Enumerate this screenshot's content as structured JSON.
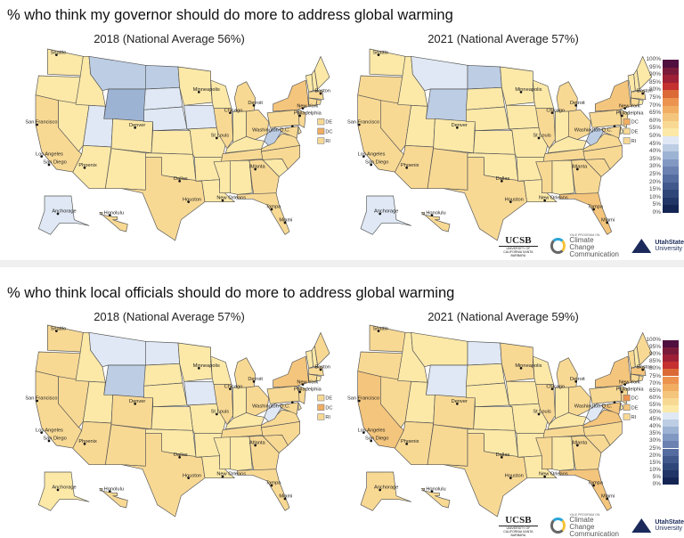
{
  "sections": [
    {
      "title": "% who think my governor should do more to address global warming",
      "maps": [
        {
          "title": "2018 (National Average 56%)",
          "values": {
            "MT": 40,
            "ND": 40,
            "WY": 35,
            "SD": 45,
            "NE": 45,
            "IA": 45,
            "UT": 45,
            "AK": 45,
            "WV": 40,
            "CA": 55,
            "TX": 55,
            "NY": 60,
            "IL": 55,
            "MI": 55,
            "OH": 55,
            "PA": 55,
            "VA": 55,
            "NC": 55,
            "TN": 55,
            "GA": 55,
            "FL": 55,
            "NJ": 55,
            "MD": 55,
            "CT": 55,
            "MA": 55,
            "RI": 55,
            "HI": 55
          },
          "small_states": [
            {
              "label": "DE",
              "value": 55
            },
            {
              "label": "DC",
              "value": 65
            },
            {
              "label": "RI",
              "value": 55
            }
          ]
        },
        {
          "title": "2021 (National Average 57%)",
          "values": {
            "MT": 45,
            "ND": 40,
            "WY": 40,
            "WV": 40,
            "AK": 45,
            "CA": 55,
            "OR": 55,
            "NV": 55,
            "AZ": 55,
            "NM": 55,
            "TX": 55,
            "IL": 55,
            "MI": 55,
            "OH": 55,
            "PA": 55,
            "NY": 60,
            "NJ": 55,
            "MD": 55,
            "VA": 55,
            "NC": 55,
            "SC": 55,
            "GA": 55,
            "TN": 55,
            "MS": 55,
            "FL": 60,
            "HI": 55,
            "CT": 55,
            "MA": 55
          },
          "small_states": [
            {
              "label": "DC",
              "value": 65
            },
            {
              "label": "DE",
              "value": 55
            },
            {
              "label": "RI",
              "value": 55
            }
          ]
        }
      ]
    },
    {
      "title": "% who think local officials should do more to address global warming",
      "maps": [
        {
          "title": "2018 (National Average 57%)",
          "values": {
            "MT": 45,
            "ND": 45,
            "WY": 40,
            "IA": 45,
            "WV": 45,
            "WA": 55,
            "OR": 55,
            "CA": 55,
            "NV": 55,
            "AZ": 55,
            "NM": 55,
            "CO": 55,
            "TX": 55,
            "IL": 55,
            "MI": 55,
            "OH": 55,
            "PA": 55,
            "NY": 60,
            "VA": 55,
            "NC": 55,
            "SC": 55,
            "GA": 55,
            "TN": 55,
            "FL": 55,
            "NJ": 55,
            "MD": 55,
            "MA": 55,
            "CT": 55,
            "ME": 55,
            "HI": 55
          },
          "small_states": [
            {
              "label": "DE",
              "value": 55
            },
            {
              "label": "DC",
              "value": 65
            },
            {
              "label": "RI",
              "value": 55
            }
          ]
        },
        {
          "title": "2021 (National Average 59%)",
          "values": {
            "ND": 45,
            "WY": 45,
            "WV": 45,
            "CA": 60,
            "FL": 60,
            "VA": 60,
            "NY": 60,
            "MD": 60,
            "MA": 60,
            "WA": 55,
            "OR": 55,
            "NV": 55,
            "AZ": 55,
            "NM": 55,
            "CO": 55,
            "TX": 55,
            "MN": 55,
            "IL": 55,
            "MI": 55,
            "OH": 55,
            "PA": 55,
            "NC": 55,
            "SC": 55,
            "GA": 55,
            "TN": 55,
            "MS": 55,
            "AK": 55,
            "HI": 55,
            "NJ": 55,
            "CT": 55,
            "ME": 55,
            "VT": 55,
            "RI": 55
          },
          "small_states": [
            {
              "label": "DC",
              "value": 70
            },
            {
              "label": "DE",
              "value": 60
            },
            {
              "label": "RI",
              "value": 55
            }
          ]
        }
      ]
    }
  ],
  "cities": [
    "Seattle",
    "San Francisco",
    "Los Angeles",
    "San Diego",
    "Phoenix",
    "Denver",
    "Dallas",
    "Houston",
    "Minneapolis",
    "Chicago",
    "Detroit",
    "St Louis",
    "Atlanta",
    "New Orleans",
    "Tampa",
    "Miami",
    "Boston",
    "New York",
    "Philadelphia",
    "Washington D.C.",
    "Anchorage",
    "Honolulu"
  ],
  "legend": {
    "labels": [
      "100%",
      "95%",
      "90%",
      "85%",
      "80%",
      "75%",
      "70%",
      "65%",
      "60%",
      "55%",
      "50%",
      "45%",
      "40%",
      "35%",
      "30%",
      "25%",
      "20%",
      "15%",
      "10%",
      "5%",
      "0%"
    ],
    "colors": [
      "#142553",
      "#213566",
      "#2f4679",
      "#40588c",
      "#546c9f",
      "#6a81b1",
      "#8198c3",
      "#9db3d4",
      "#bccde4",
      "#dfe8f4",
      "#fce9a8",
      "#f8d994",
      "#f4c57c",
      "#f1ad62",
      "#ed9350",
      "#db6a36",
      "#c53030",
      "#9e2036",
      "#7a1a3a",
      "#4f0f3f"
    ]
  },
  "logos": {
    "ucsb": "UCSB",
    "ucsb_sub": "UNIVERSITY OF CALIFORNIA SANTA BARBARA",
    "yale_top": "YALE PROGRAM ON",
    "yale_1": "Climate Change",
    "yale_2": "Communication",
    "usu_1": "UtahState",
    "usu_2": "University"
  }
}
